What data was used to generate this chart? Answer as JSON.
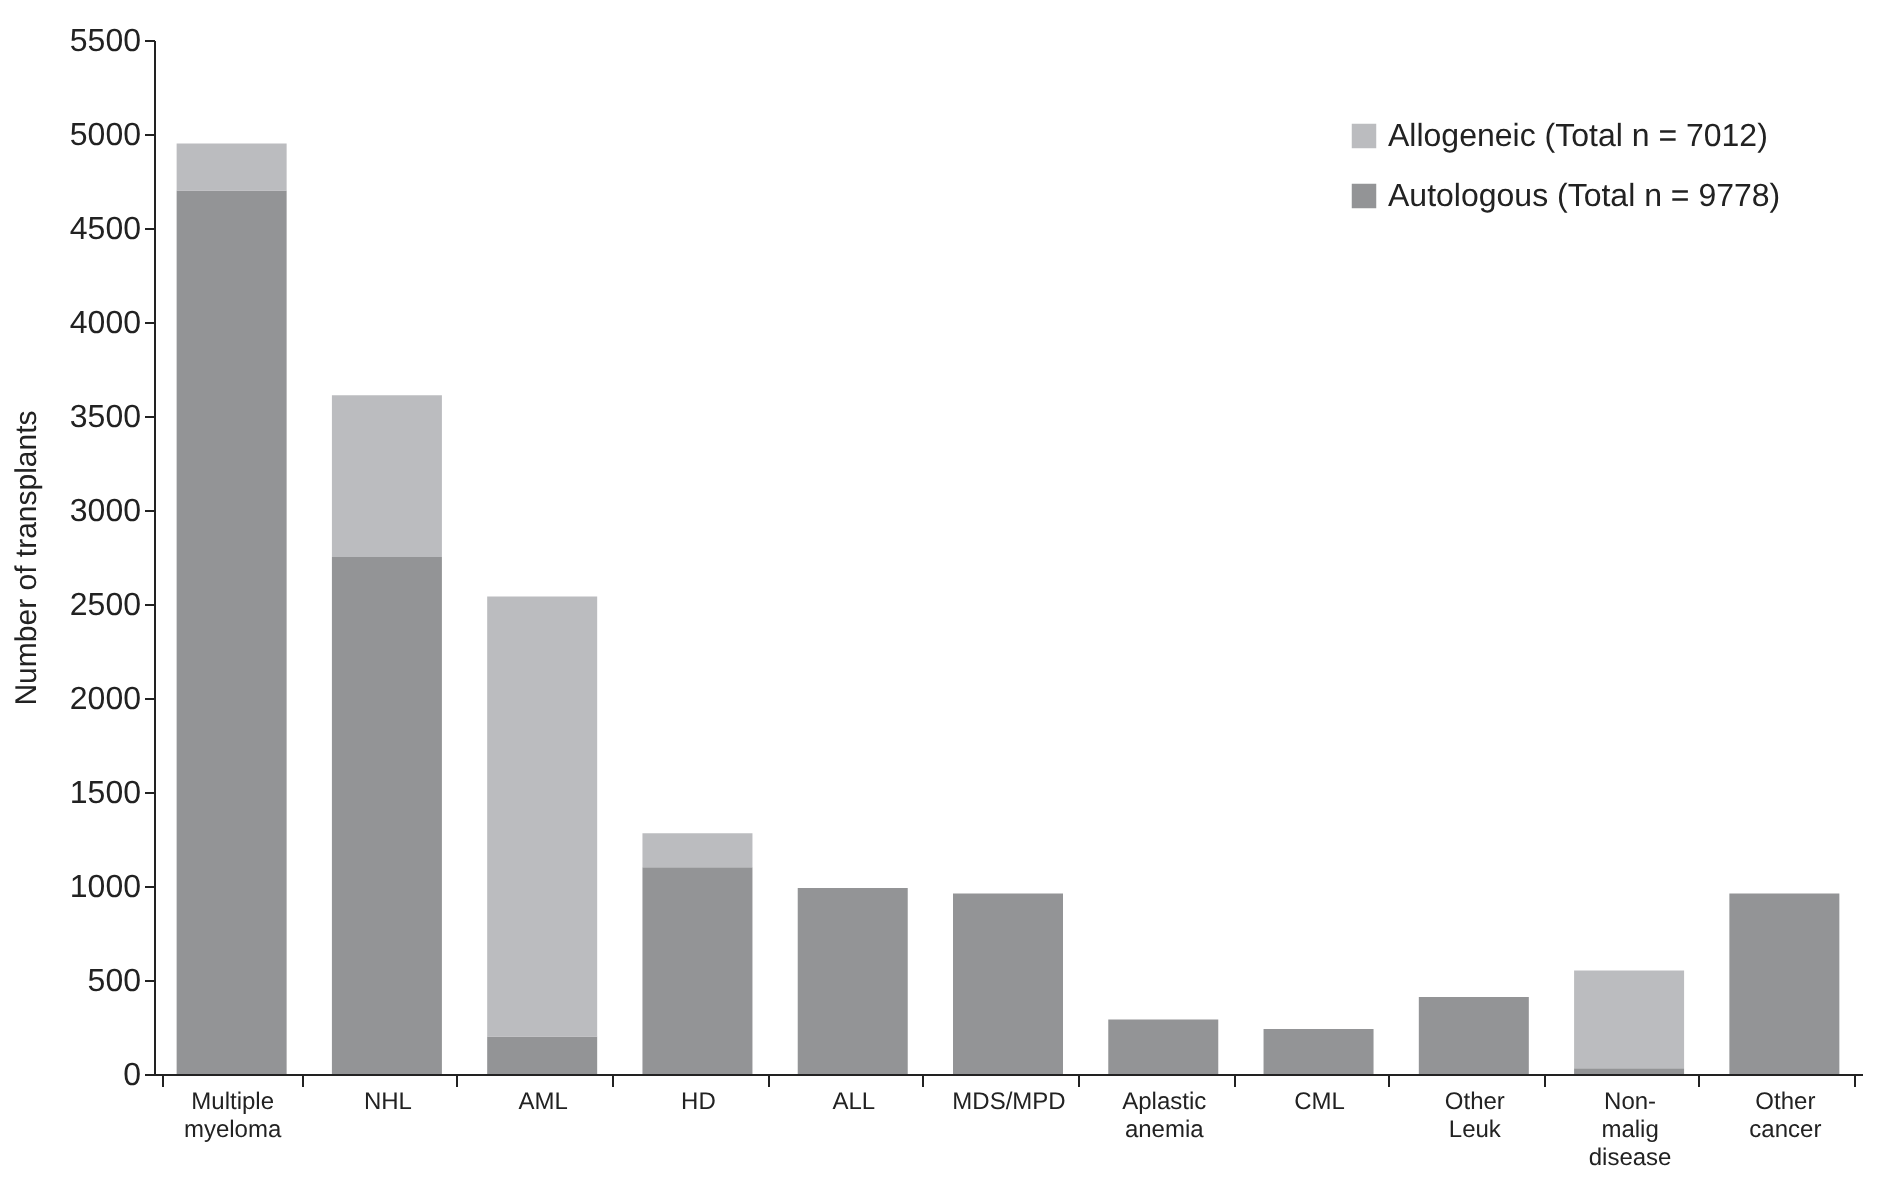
{
  "chart_data": {
    "type": "bar",
    "stacked": true,
    "ylabel": "Number of transplants",
    "categories": [
      "Multiple myeloma",
      "NHL",
      "AML",
      "HD",
      "ALL",
      "MDS/MPD",
      "Aplastic anemia",
      "CML",
      "Other Leuk",
      "Non-malig disease",
      "Other cancer"
    ],
    "series": [
      {
        "name": "Autologous (Total n = 9778)",
        "color": "#939496",
        "values": [
          4700,
          2750,
          200,
          1100,
          990,
          960,
          290,
          240,
          410,
          30,
          960
        ]
      },
      {
        "name": "Allogeneic (Total n = 7012)",
        "color": "#bbbcbf",
        "values": [
          250,
          860,
          2340,
          180,
          null,
          null,
          null,
          null,
          null,
          520,
          null
        ]
      }
    ],
    "ylim": [
      0,
      5500
    ],
    "yticks": [
      0,
      500,
      1000,
      1500,
      2000,
      2500,
      3000,
      3500,
      4000,
      4500,
      5000,
      5500
    ],
    "grid": false,
    "legend": "top right"
  }
}
